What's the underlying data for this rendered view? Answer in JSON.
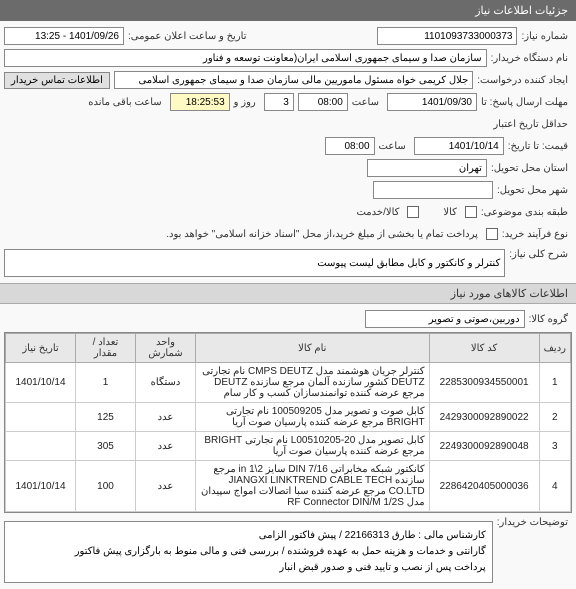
{
  "header": {
    "title": "جزئیات اطلاعات نیاز"
  },
  "fields": {
    "need_no_label": "شماره نیاز:",
    "need_no_value": "1101093733000373",
    "announce_date_label": "تاریخ و ساعت اعلان عمومی:",
    "announce_date_value": "1401/09/26 - 13:25",
    "buyer_name_label": "نام دستگاه خریدار:",
    "buyer_name_value": "سازمان صدا و سیمای جمهوری اسلامی ایران(معاونت توسعه و فناور",
    "creator_label": "ایجاد کننده درخواست:",
    "creator_value": "جلال کریمی خواه مسئول ماموریین مالی  سازمان صدا و سیمای جمهوری اسلامی",
    "contact_tab": "اطلاعات تماس خریدار",
    "deadline_label": "مهلت ارسال پاسخ: تا",
    "deadline_date": "1401/09/30",
    "time_label": "ساعت",
    "deadline_time": "08:00",
    "days_value": "3",
    "day_and_label": "روز و",
    "remaining_time": "18:25:53",
    "remaining_label": "ساعت باقی مانده",
    "min_valid_label": "حداقل تاریخ اعتبار",
    "price_label": "قیمت: تا تاریخ:",
    "min_valid_date": "1401/10/14",
    "min_valid_time": "08:00",
    "delivery_province_label": "استان محل تحویل:",
    "delivery_province_value": "تهران",
    "delivery_city_label": "شهر محل تحویل:",
    "delivery_city_value": "",
    "budget_label": "طبقه بندی موضوعی:",
    "goods_label": "کالا",
    "service_label": "کالا/خدمت",
    "process_type_label": "نوع فرآیند خرید:",
    "payment_note": "پرداخت تمام یا بخشی از مبلغ خرید،از محل \"اسناد خزانه اسلامی\" خواهد بود."
  },
  "need_desc": {
    "label": "شرح کلی نیاز:",
    "value": "کنترلر و کانکتور و کابل مطابق لیست پیوست"
  },
  "goods_section": {
    "title": "اطلاعات کالاهای مورد نیاز",
    "group_label": "گروه کالا:",
    "group_value": "دوربین،صوتی و تصویر"
  },
  "table": {
    "headers": {
      "row": "ردیف",
      "code": "کد کالا",
      "name": "نام کالا",
      "unit": "واحد شمارش",
      "qty": "تعداد / مقدار",
      "date": "تاریخ نیاز"
    },
    "rows": [
      {
        "row": "1",
        "code": "2285300934550001",
        "name": "کنترلر جریان هوشمند مدل CMPS DEUTZ نام تجارتی DEUTZ کشور سازنده آلمان مرجع سازنده DEUTZ مرجع عرضه کننده توانمندسازان کسب و کار سام",
        "unit": "دستگاه",
        "qty": "1",
        "date": "1401/10/14"
      },
      {
        "row": "2",
        "code": "2429300092890022",
        "name": "کابل صوت و تصویر مدل 100509205 نام تجارتی BRIGHT مرجع عرضه کننده پارسیان صوت آریا",
        "unit": "عدد",
        "qty": "125",
        "date": ""
      },
      {
        "row": "3",
        "code": "2249300092890048",
        "name": "کابل تصویر مدل L00510205-20 نام تجارتی BRIGHT مرجع عرضه کننده پارسیان صوت آریا",
        "unit": "عدد",
        "qty": "305",
        "date": ""
      },
      {
        "row": "4",
        "code": "2286420405000036",
        "name": "کانکتور شبکه مخابراتی DIN 7/16 سایز 2\\1 in مرجع سازنده JIANGXI LINKTREND CABLE TECH CO.LTD مرجع عرضه کننده سبا اتصالات امواج سپیدان مدل RF Connector DIN/M 1/2S",
        "unit": "عدد",
        "qty": "100",
        "date": "1401/10/14"
      }
    ]
  },
  "footer": {
    "label": "توضیحات خریدار:",
    "line1": "کارشناس مالی : طارق 22166313  /  پیش فاکتور الزامی",
    "line2": "گارانتی و خدمات و هزینه حمل به عهده فروشنده / بررسی فنی و مالی منوط به بارگزاری پیش فاکتور",
    "line3": "پرداخت پس از نصب و تایید فنی و صدور قبض انبار"
  },
  "colors": {
    "header_bg": "#6b6b6b",
    "section_bg": "#d8d8d8",
    "th_bg": "#e8e8e8",
    "border": "#888888",
    "highlight": "#fff9c4"
  }
}
